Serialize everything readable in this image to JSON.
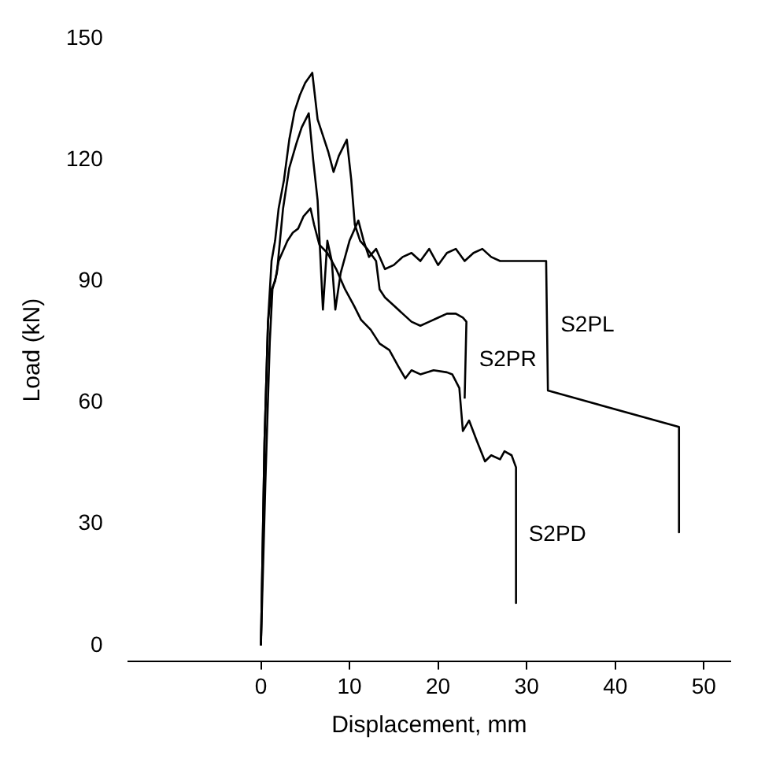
{
  "chart_data": {
    "type": "line",
    "xlabel": "Displacement, mm",
    "ylabel": "Load (kN)",
    "xlim": [
      -15,
      53
    ],
    "ylim": [
      -4,
      150
    ],
    "xticks": [
      0,
      10,
      20,
      30,
      40,
      50
    ],
    "yticks": [
      0,
      30,
      60,
      90,
      120,
      150
    ],
    "grid": false,
    "legend": false,
    "marker": "none",
    "line_style": "solid",
    "series": [
      {
        "name": "S2PL",
        "color": "#000000",
        "x": [
          0,
          0.5,
          1,
          1.3,
          1.8,
          2.5,
          3.2,
          4,
          4.6,
          5.4,
          5.9,
          6.4,
          7,
          7.5,
          8,
          8.4,
          9,
          10,
          11,
          11.6,
          12.2,
          13,
          14,
          15,
          16,
          17,
          18,
          19,
          20,
          21,
          22,
          23,
          24,
          25,
          26,
          27,
          28,
          30,
          32.2,
          32.4,
          47.2,
          47.2
        ],
        "values": [
          0,
          40,
          75,
          88,
          92,
          108,
          118,
          124,
          128,
          131.5,
          120,
          110,
          83,
          100,
          95,
          83,
          92,
          100,
          105,
          100,
          96,
          98,
          93,
          94,
          96,
          97,
          95,
          98,
          94,
          97,
          98,
          95,
          97,
          98,
          96,
          95,
          95,
          95,
          95,
          63,
          54,
          28
        ]
      },
      {
        "name": "S2PR",
        "color": "#000000",
        "x": [
          0,
          0.4,
          0.8,
          1.2,
          1.6,
          2,
          2.6,
          3.2,
          3.8,
          4.4,
          5,
          5.8,
          6.4,
          7,
          7.6,
          8.2,
          8.8,
          9.7,
          10.2,
          10.6,
          11.2,
          12,
          13,
          13.4,
          14,
          15,
          16,
          17,
          18,
          19,
          20,
          21,
          22,
          22.8,
          23.2,
          23
        ],
        "values": [
          0,
          50,
          80,
          95,
          100,
          108,
          115,
          125,
          132,
          136,
          139,
          141.5,
          130,
          126,
          122,
          117,
          121,
          125,
          115,
          104,
          100,
          98,
          95,
          88,
          86,
          84,
          82,
          80,
          79,
          80,
          81,
          82,
          82,
          81,
          80,
          61
        ]
      },
      {
        "name": "S2PD",
        "color": "#000000",
        "x": [
          0,
          0.4,
          0.8,
          1.2,
          1.6,
          2,
          2.6,
          3,
          3.6,
          4.2,
          4.8,
          5.6,
          6,
          6.6,
          7.5,
          8.5,
          9.5,
          10.5,
          11.3,
          12.4,
          13.4,
          14.5,
          15.5,
          16.3,
          17,
          18,
          19.5,
          21,
          21.6,
          22.4,
          22.8,
          23.5,
          24.3,
          25.3,
          26,
          27,
          27.5,
          28.3,
          28.8,
          28.8
        ],
        "values": [
          0,
          50,
          80,
          88,
          90,
          95,
          98,
          100,
          102,
          103,
          106,
          108,
          104,
          99,
          97,
          93,
          88,
          84,
          80.5,
          78,
          74.6,
          73,
          69,
          66,
          68,
          67,
          68,
          67.5,
          67,
          63.6,
          53,
          55.6,
          51,
          45.5,
          47,
          46,
          48,
          47,
          44,
          10.5
        ]
      }
    ]
  }
}
